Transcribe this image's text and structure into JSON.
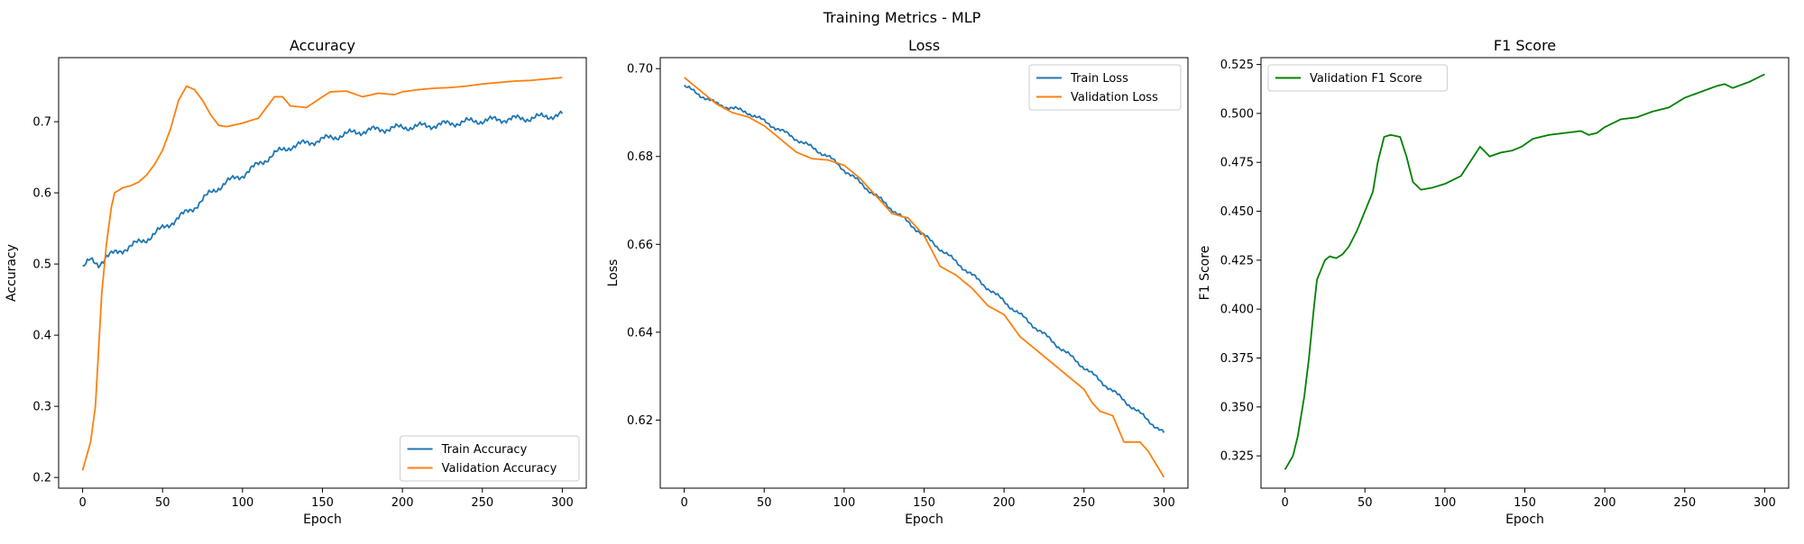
{
  "figure": {
    "suptitle": "Training Metrics - MLP"
  },
  "chart_data": [
    {
      "type": "line",
      "title": "Accuracy",
      "xlabel": "Epoch",
      "ylabel": "Accuracy",
      "xlim": [
        -15,
        315
      ],
      "ylim": [
        0.185,
        0.79
      ],
      "xticks": [
        0,
        50,
        100,
        150,
        200,
        250,
        300
      ],
      "yticks": [
        0.2,
        0.3,
        0.4,
        0.5,
        0.6,
        0.7
      ],
      "legend_loc": "lower-right",
      "grid": false,
      "series": [
        {
          "name": "Train Accuracy",
          "color": "#1f77b4",
          "noise": 0.006,
          "knots": [
            [
              0,
              0.495
            ],
            [
              5,
              0.505
            ],
            [
              10,
              0.5
            ],
            [
              15,
              0.51
            ],
            [
              20,
              0.515
            ],
            [
              30,
              0.525
            ],
            [
              40,
              0.535
            ],
            [
              50,
              0.55
            ],
            [
              60,
              0.565
            ],
            [
              70,
              0.58
            ],
            [
              80,
              0.6
            ],
            [
              90,
              0.615
            ],
            [
              100,
              0.625
            ],
            [
              110,
              0.64
            ],
            [
              120,
              0.655
            ],
            [
              130,
              0.665
            ],
            [
              140,
              0.67
            ],
            [
              150,
              0.675
            ],
            [
              160,
              0.68
            ],
            [
              170,
              0.685
            ],
            [
              180,
              0.688
            ],
            [
              190,
              0.69
            ],
            [
              200,
              0.692
            ],
            [
              220,
              0.695
            ],
            [
              240,
              0.7
            ],
            [
              260,
              0.703
            ],
            [
              280,
              0.705
            ],
            [
              300,
              0.71
            ]
          ]
        },
        {
          "name": "Validation Accuracy",
          "color": "#ff7f0e",
          "noise": 0.0,
          "knots": [
            [
              0,
              0.21
            ],
            [
              5,
              0.25
            ],
            [
              8,
              0.3
            ],
            [
              10,
              0.38
            ],
            [
              12,
              0.46
            ],
            [
              15,
              0.53
            ],
            [
              18,
              0.58
            ],
            [
              20,
              0.6
            ],
            [
              25,
              0.607
            ],
            [
              30,
              0.61
            ],
            [
              35,
              0.615
            ],
            [
              40,
              0.625
            ],
            [
              45,
              0.64
            ],
            [
              50,
              0.66
            ],
            [
              55,
              0.69
            ],
            [
              60,
              0.73
            ],
            [
              65,
              0.75
            ],
            [
              70,
              0.745
            ],
            [
              75,
              0.73
            ],
            [
              80,
              0.71
            ],
            [
              85,
              0.695
            ],
            [
              90,
              0.693
            ],
            [
              100,
              0.698
            ],
            [
              110,
              0.705
            ],
            [
              115,
              0.72
            ],
            [
              120,
              0.735
            ],
            [
              125,
              0.735
            ],
            [
              130,
              0.722
            ],
            [
              140,
              0.72
            ],
            [
              150,
              0.735
            ],
            [
              155,
              0.742
            ],
            [
              165,
              0.743
            ],
            [
              175,
              0.735
            ],
            [
              185,
              0.74
            ],
            [
              195,
              0.738
            ],
            [
              200,
              0.742
            ],
            [
              210,
              0.745
            ],
            [
              220,
              0.747
            ],
            [
              230,
              0.748
            ],
            [
              240,
              0.75
            ],
            [
              250,
              0.753
            ],
            [
              260,
              0.755
            ],
            [
              270,
              0.757
            ],
            [
              280,
              0.758
            ],
            [
              290,
              0.76
            ],
            [
              300,
              0.762
            ]
          ]
        }
      ]
    },
    {
      "type": "line",
      "title": "Loss",
      "xlabel": "Epoch",
      "ylabel": "Loss",
      "xlim": [
        -15,
        315
      ],
      "ylim": [
        0.6045,
        0.7025
      ],
      "xticks": [
        0,
        50,
        100,
        150,
        200,
        250,
        300
      ],
      "yticks": [
        0.62,
        0.64,
        0.66,
        0.68,
        0.7
      ],
      "legend_loc": "upper-right",
      "grid": false,
      "series": [
        {
          "name": "Train Loss",
          "color": "#1f77b4",
          "noise": 0.0006,
          "knots": [
            [
              0,
              0.696
            ],
            [
              10,
              0.694
            ],
            [
              20,
              0.692
            ],
            [
              30,
              0.691
            ],
            [
              40,
              0.69
            ],
            [
              50,
              0.688
            ],
            [
              60,
              0.686
            ],
            [
              70,
              0.684
            ],
            [
              80,
              0.682
            ],
            [
              90,
              0.68
            ],
            [
              100,
              0.677
            ],
            [
              110,
              0.674
            ],
            [
              120,
              0.671
            ],
            [
              130,
              0.668
            ],
            [
              140,
              0.665
            ],
            [
              150,
              0.662
            ],
            [
              160,
              0.659
            ],
            [
              170,
              0.656
            ],
            [
              180,
              0.653
            ],
            [
              190,
              0.65
            ],
            [
              200,
              0.647
            ],
            [
              210,
              0.644
            ],
            [
              220,
              0.641
            ],
            [
              230,
              0.638
            ],
            [
              240,
              0.635
            ],
            [
              250,
              0.632
            ],
            [
              260,
              0.629
            ],
            [
              270,
              0.626
            ],
            [
              280,
              0.623
            ],
            [
              290,
              0.62
            ],
            [
              300,
              0.617
            ]
          ]
        },
        {
          "name": "Validation Loss",
          "color": "#ff7f0e",
          "noise": 0.0,
          "knots": [
            [
              0,
              0.698
            ],
            [
              10,
              0.695
            ],
            [
              20,
              0.692
            ],
            [
              30,
              0.69
            ],
            [
              40,
              0.689
            ],
            [
              50,
              0.687
            ],
            [
              60,
              0.684
            ],
            [
              70,
              0.681
            ],
            [
              80,
              0.6795
            ],
            [
              90,
              0.6792
            ],
            [
              100,
              0.678
            ],
            [
              110,
              0.675
            ],
            [
              120,
              0.671
            ],
            [
              130,
              0.667
            ],
            [
              140,
              0.666
            ],
            [
              150,
              0.662
            ],
            [
              160,
              0.655
            ],
            [
              170,
              0.653
            ],
            [
              180,
              0.65
            ],
            [
              190,
              0.646
            ],
            [
              200,
              0.644
            ],
            [
              210,
              0.639
            ],
            [
              220,
              0.636
            ],
            [
              230,
              0.633
            ],
            [
              240,
              0.63
            ],
            [
              250,
              0.627
            ],
            [
              255,
              0.624
            ],
            [
              260,
              0.622
            ],
            [
              268,
              0.621
            ],
            [
              275,
              0.615
            ],
            [
              285,
              0.615
            ],
            [
              290,
              0.613
            ],
            [
              300,
              0.607
            ]
          ]
        }
      ]
    },
    {
      "type": "line",
      "title": "F1 Score",
      "xlabel": "Epoch",
      "ylabel": "F1 Score",
      "xlim": [
        -15,
        315
      ],
      "ylim": [
        0.3085,
        0.5285
      ],
      "xticks": [
        0,
        50,
        100,
        150,
        200,
        250,
        300
      ],
      "yticks": [
        0.325,
        0.35,
        0.375,
        0.4,
        0.425,
        0.45,
        0.475,
        0.5,
        0.525
      ],
      "legend_loc": "upper-left",
      "grid": false,
      "series": [
        {
          "name": "Validation F1 Score",
          "color": "#008000",
          "noise": 0.0,
          "knots": [
            [
              0,
              0.318
            ],
            [
              5,
              0.325
            ],
            [
              8,
              0.335
            ],
            [
              12,
              0.355
            ],
            [
              15,
              0.375
            ],
            [
              18,
              0.4
            ],
            [
              20,
              0.415
            ],
            [
              25,
              0.425
            ],
            [
              28,
              0.427
            ],
            [
              32,
              0.426
            ],
            [
              36,
              0.428
            ],
            [
              40,
              0.432
            ],
            [
              45,
              0.44
            ],
            [
              50,
              0.45
            ],
            [
              55,
              0.46
            ],
            [
              58,
              0.475
            ],
            [
              62,
              0.488
            ],
            [
              66,
              0.489
            ],
            [
              72,
              0.488
            ],
            [
              76,
              0.478
            ],
            [
              80,
              0.465
            ],
            [
              85,
              0.461
            ],
            [
              92,
              0.462
            ],
            [
              100,
              0.464
            ],
            [
              110,
              0.468
            ],
            [
              118,
              0.478
            ],
            [
              122,
              0.483
            ],
            [
              128,
              0.478
            ],
            [
              135,
              0.48
            ],
            [
              142,
              0.481
            ],
            [
              148,
              0.483
            ],
            [
              155,
              0.487
            ],
            [
              165,
              0.489
            ],
            [
              175,
              0.49
            ],
            [
              185,
              0.491
            ],
            [
              190,
              0.489
            ],
            [
              195,
              0.49
            ],
            [
              200,
              0.493
            ],
            [
              210,
              0.497
            ],
            [
              220,
              0.498
            ],
            [
              230,
              0.501
            ],
            [
              240,
              0.503
            ],
            [
              250,
              0.508
            ],
            [
              260,
              0.511
            ],
            [
              270,
              0.514
            ],
            [
              275,
              0.515
            ],
            [
              280,
              0.513
            ],
            [
              290,
              0.516
            ],
            [
              300,
              0.52
            ]
          ]
        }
      ]
    }
  ]
}
